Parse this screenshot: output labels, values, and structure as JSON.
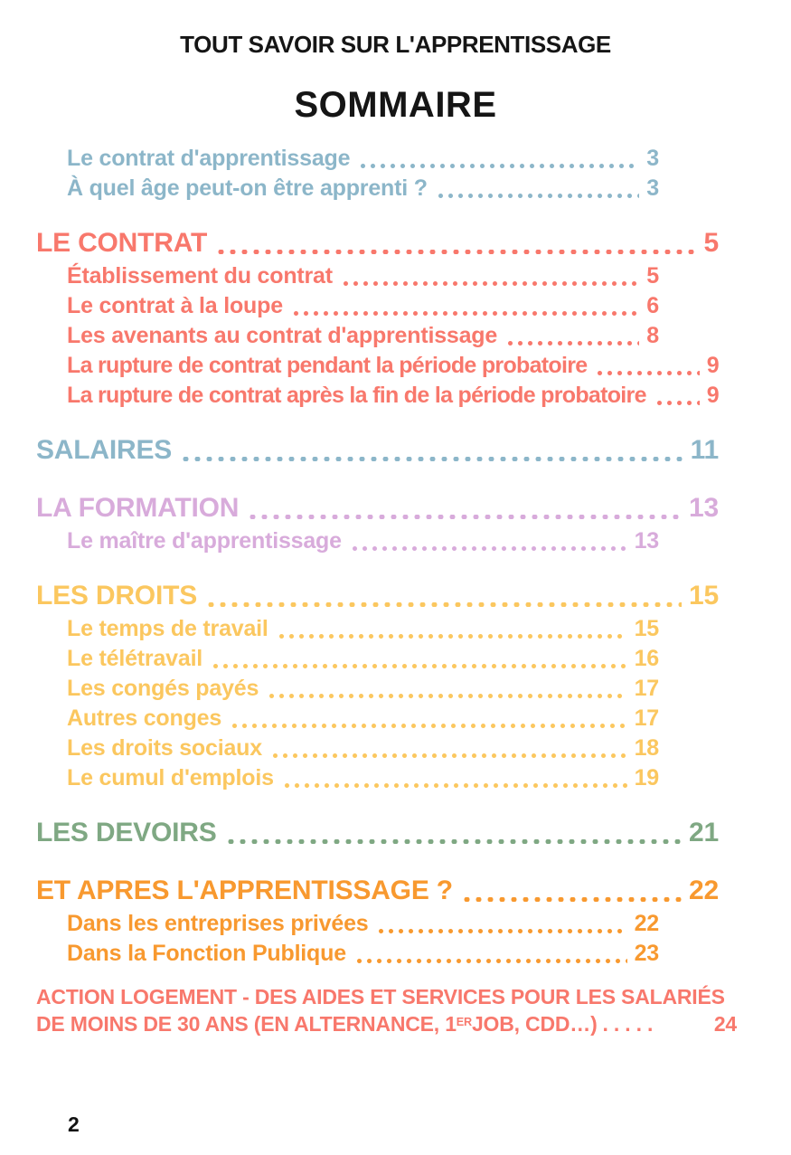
{
  "header": {
    "doc_title": "TOUT SAVOIR SUR L'APPRENTISSAGE",
    "page_title": "SOMMAIRE"
  },
  "colors": {
    "blue": "#8CB6C9",
    "coral": "#F8786C",
    "lilac": "#D8ABDB",
    "yellow": "#FBC75F",
    "green": "#7FA883",
    "orange": "#F8992F",
    "text_black": "#151515"
  },
  "toc": {
    "rows": [
      {
        "label": "Le contrat d'apprentissage",
        "page": "3"
      },
      {
        "label": "À quel âge peut-on être apprenti ?",
        "page": "3"
      },
      {
        "label": "LE CONTRAT",
        "page": "5"
      },
      {
        "label": "Établissement du contrat",
        "page": "5"
      },
      {
        "label": "Le contrat à la loupe",
        "page": "6"
      },
      {
        "label": "Les avenants au contrat d'apprentissage",
        "page": "8"
      },
      {
        "label": "La rupture de contrat pendant la période probatoire",
        "page": "9"
      },
      {
        "label": "La rupture de contrat après la fin de la période probatoire",
        "page": "9"
      },
      {
        "label": "SALAIRES",
        "page": "11"
      },
      {
        "label": "LA FORMATION",
        "page": "13"
      },
      {
        "label": "Le maître d'apprentissage",
        "page": "13"
      },
      {
        "label": "LES DROITS",
        "page": "15"
      },
      {
        "label": "Le temps de travail",
        "page": "15"
      },
      {
        "label": "Le télétravail",
        "page": "16"
      },
      {
        "label": "Les congés payés",
        "page": "17"
      },
      {
        "label": "Autres conges",
        "page": "17"
      },
      {
        "label": "Les droits sociaux",
        "page": "18"
      },
      {
        "label": "Le cumul d'emplois",
        "page": "19"
      },
      {
        "label": "LES DEVOIRS",
        "page": "21"
      },
      {
        "label": "ET APRES L'APPRENTISSAGE ?",
        "page": "22"
      },
      {
        "label": "Dans les entreprises privées",
        "page": "22"
      },
      {
        "label": "Dans la Fonction Publique",
        "page": "23"
      }
    ]
  },
  "footnote": {
    "line1": "ACTION LOGEMENT - DES AIDES ET SERVICES POUR LES SALARIÉS",
    "line2_prefix": "DE MOINS DE 30 ANS (EN ALTERNANCE, 1",
    "line2_sup": "ER",
    "line2_suffix": " JOB, CDD…)",
    "dots": ". . . . .",
    "page": "24"
  },
  "folio": "2"
}
